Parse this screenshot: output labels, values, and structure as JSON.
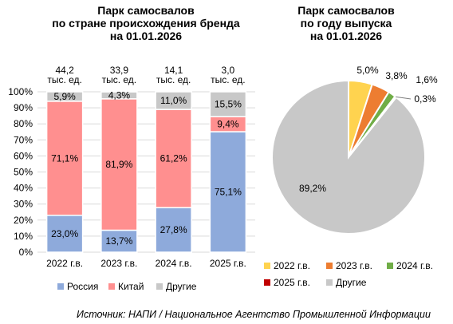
{
  "source": "Источник: НАПИ / Национальное Агентство Промышленной Информации",
  "chart_data": [
    {
      "type": "bar",
      "stacked": true,
      "title_lines": [
        "Парк самосвалов",
        "по стране происхождения бренда",
        "на 01.01.2026"
      ],
      "categories": [
        "2022 г.в.",
        "2023 г.в.",
        "2024 г.в.",
        "2025 г.в."
      ],
      "totals": [
        [
          "44,2",
          "тыс. ед."
        ],
        [
          "33,9",
          "тыс. ед."
        ],
        [
          "14,1",
          "тыс. ед."
        ],
        [
          "3,0",
          "тыс. ед."
        ]
      ],
      "y_ticks": [
        "0%",
        "10%",
        "20%",
        "30%",
        "40%",
        "50%",
        "60%",
        "70%",
        "80%",
        "90%",
        "100%"
      ],
      "ylim": [
        0,
        100
      ],
      "grid": true,
      "legend_position": "bottom",
      "series": [
        {
          "name": "Россия",
          "color": "#8eaadb",
          "values": [
            23.0,
            13.7,
            27.8,
            75.1
          ],
          "labels": [
            "23,0%",
            "13,7%",
            "27,8%",
            "75,1%"
          ]
        },
        {
          "name": "Китай",
          "color": "#ff8f8f",
          "values": [
            71.1,
            81.9,
            61.2,
            9.4
          ],
          "labels": [
            "71,1%",
            "81,9%",
            "61,2%",
            "9,4%"
          ]
        },
        {
          "name": "Другие",
          "color": "#c8c8c8",
          "values": [
            5.9,
            4.3,
            11.0,
            15.5
          ],
          "labels": [
            "5,9%",
            "4,3%",
            "11,0%",
            "15,5%"
          ]
        }
      ]
    },
    {
      "type": "pie",
      "title_lines": [
        "Парк самосвалов",
        "по году выпуска",
        "на 01.01.2026"
      ],
      "legend_position": "bottom",
      "slices": [
        {
          "name": "2022 г.в.",
          "value": 5.0,
          "label": "5,0%",
          "color": "#ffd34f"
        },
        {
          "name": "2023 г.в.",
          "value": 3.8,
          "label": "3,8%",
          "color": "#ed7d31"
        },
        {
          "name": "2024 г.в.",
          "value": 1.6,
          "label": "1,6%",
          "color": "#70ad47"
        },
        {
          "name": "2025 г.в.",
          "value": 0.3,
          "label": "0,3%",
          "color": "#c00000"
        },
        {
          "name": "Другие",
          "value": 89.2,
          "label": "89,2%",
          "color": "#c8c8c8"
        }
      ]
    }
  ]
}
